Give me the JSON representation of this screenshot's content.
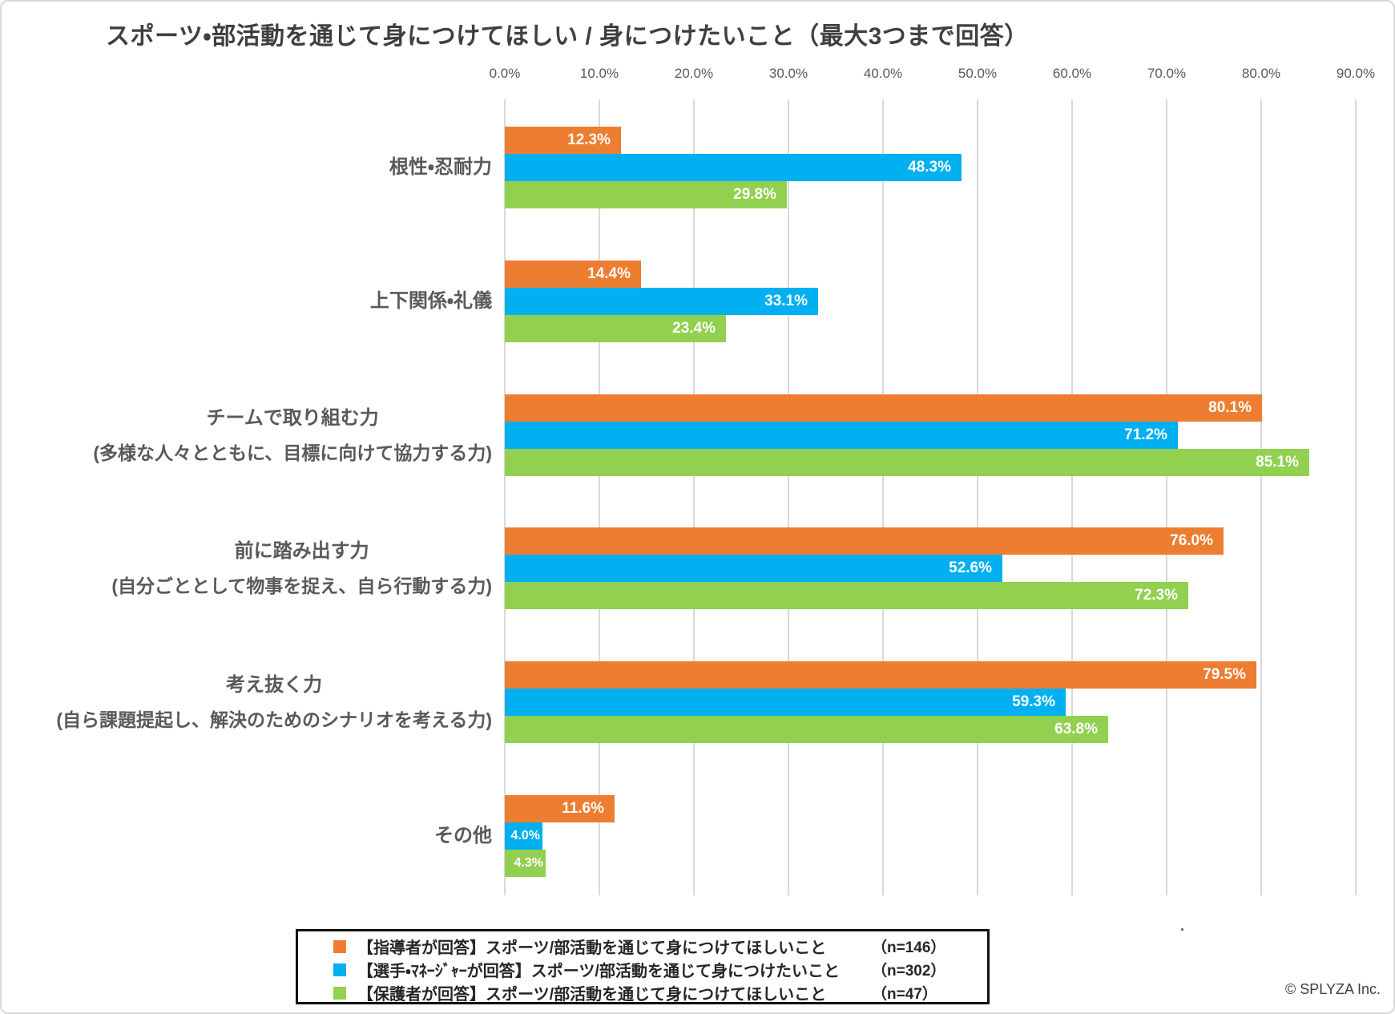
{
  "title": "スポーツ・部活動を通じて身につけてほしい / 身につけたいこと（最大3つまで回答）",
  "copyright": "© SPLYZA Inc.",
  "stray_mark": ".",
  "colors": {
    "coach_orange": "#ED7D31",
    "player_blue": "#00B0F0",
    "parent_green": "#92D050",
    "gridline": "#D9D9D9",
    "axis_text": "#595959",
    "title_text": "#3F3F3F",
    "value_label": "#FFFFFF",
    "legend_border": "#111111"
  },
  "chart_data": {
    "type": "bar",
    "orientation": "horizontal",
    "title": "スポーツ・部活動を通じて身につけてほしい / 身につけたいこと（最大3つまで回答）",
    "x_axis": {
      "unit": "%",
      "min": 0,
      "max": 90,
      "step": 10,
      "tick_labels": [
        "0.0%",
        "10.0%",
        "20.0%",
        "30.0%",
        "40.0%",
        "50.0%",
        "60.0%",
        "70.0%",
        "80.0%",
        "90.0%"
      ],
      "grid": true
    },
    "categories": [
      {
        "label": "根性・忍耐力",
        "sublabel": ""
      },
      {
        "label": "上下関係・礼儀",
        "sublabel": ""
      },
      {
        "label": "チームで取り組む力",
        "sublabel": "(多様な人々とともに、目標に向けて協力する力)"
      },
      {
        "label": "前に踏み出す力",
        "sublabel": "(自分ごととして物事を捉え、自ら行動する力)"
      },
      {
        "label": "考え抜く力",
        "sublabel": "(自ら課題提起し、解決のためのシナリオを考える力)"
      },
      {
        "label": "その他",
        "sublabel": ""
      }
    ],
    "series": [
      {
        "name": "【指導者が回答】スポーツ/部活動を通じて身につけてほしいこと",
        "n_label": "（n=146）",
        "color": "#ED7D31",
        "values": [
          12.3,
          14.4,
          80.1,
          76.0,
          79.5,
          11.6
        ]
      },
      {
        "name": "【選手・ﾏﾈｰｼﾞｬｰが回答】スポーツ/部活動を通じて身につけたいこと",
        "n_label": "（n=302）",
        "color": "#00B0F0",
        "values": [
          48.3,
          33.1,
          71.2,
          52.6,
          59.3,
          4.0
        ]
      },
      {
        "name": "【保護者が回答】スポーツ/部活動を通じて身につけてほしいこと",
        "n_label": "（n=47）",
        "color": "#92D050",
        "values": [
          29.8,
          23.4,
          85.1,
          72.3,
          63.8,
          4.3
        ]
      }
    ],
    "value_label_format": "one decimal + %",
    "value_label_position": "inside-end",
    "legend_position": "bottom"
  }
}
